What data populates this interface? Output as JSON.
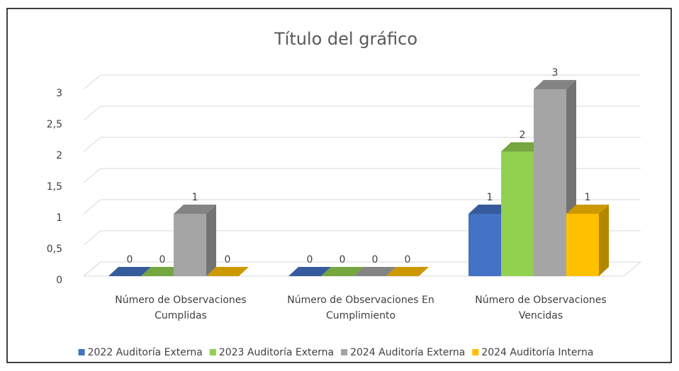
{
  "chart_data": {
    "type": "bar3d",
    "title": "Título del gráfico",
    "categories": [
      "Número de Observaciones Cumplidas",
      "Número de Observaciones En Cumplimiento",
      "Número de Observaciones Vencidas"
    ],
    "series": [
      {
        "name": "2022 Auditoría Externa",
        "color": "#4472c4",
        "values": [
          0,
          0,
          1
        ]
      },
      {
        "name": "2023 Auditoría Externa",
        "color": "#92d050",
        "values": [
          0,
          0,
          2
        ]
      },
      {
        "name": "2024 Auditoría Externa",
        "color": "#a5a5a5",
        "values": [
          1,
          0,
          3
        ]
      },
      {
        "name": "2024 Auditoría Interna",
        "color": "#ffc000",
        "values": [
          0,
          0,
          1
        ]
      }
    ],
    "ylim": [
      0,
      3
    ],
    "yticks": [
      0,
      {
        "value": 0.5,
        "label": "0,5"
      },
      1,
      {
        "value": 1.5,
        "label": "1,5"
      },
      2,
      {
        "value": 2.5,
        "label": "2,5"
      },
      3
    ],
    "grid": true,
    "legend": "bottom"
  }
}
